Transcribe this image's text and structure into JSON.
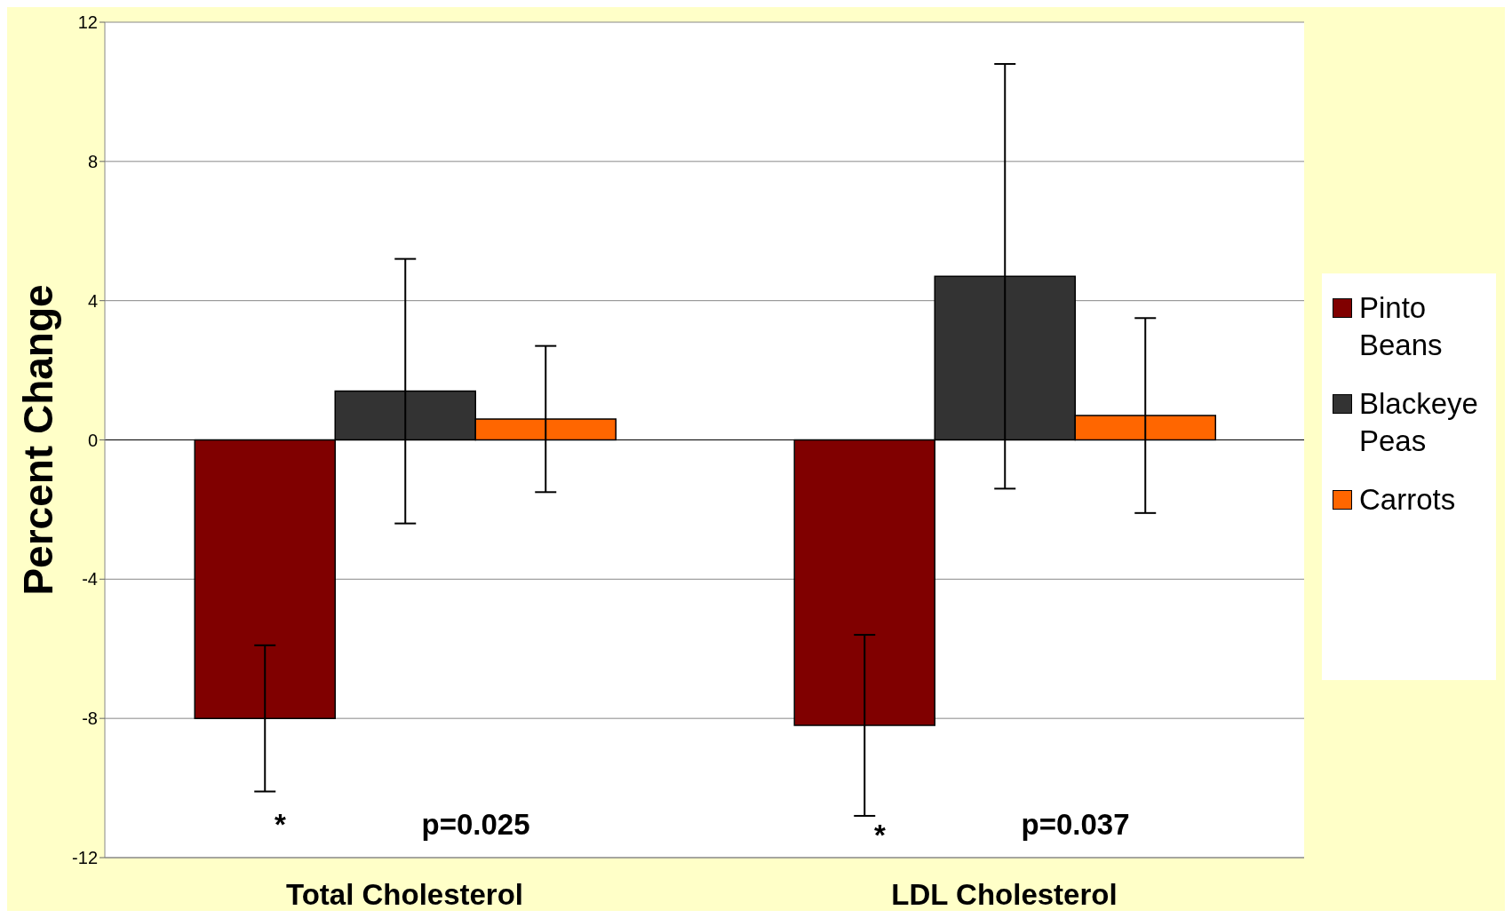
{
  "chart_data": {
    "type": "bar",
    "ylabel": "Percent Change",
    "categories": [
      "Total Cholesterol",
      "LDL Cholesterol"
    ],
    "series": [
      {
        "name": "Pinto Beans",
        "color": "#800000",
        "values": [
          -8.0,
          -8.2
        ],
        "errors": [
          2.1,
          2.6
        ]
      },
      {
        "name": "Blackeye Peas",
        "color": "#333333",
        "values": [
          1.4,
          4.7
        ],
        "errors": [
          3.8,
          6.1
        ]
      },
      {
        "name": "Carrots",
        "color": "#ff6600",
        "values": [
          0.6,
          0.7
        ],
        "errors": [
          2.1,
          2.8
        ]
      }
    ],
    "ylim": [
      -12,
      12
    ],
    "yticks": [
      -12,
      -8,
      -4,
      0,
      4,
      8,
      12
    ],
    "grid": "y",
    "legend": "right",
    "annotations": [
      "*",
      "p=0.025",
      "*",
      "p=0.037"
    ]
  }
}
